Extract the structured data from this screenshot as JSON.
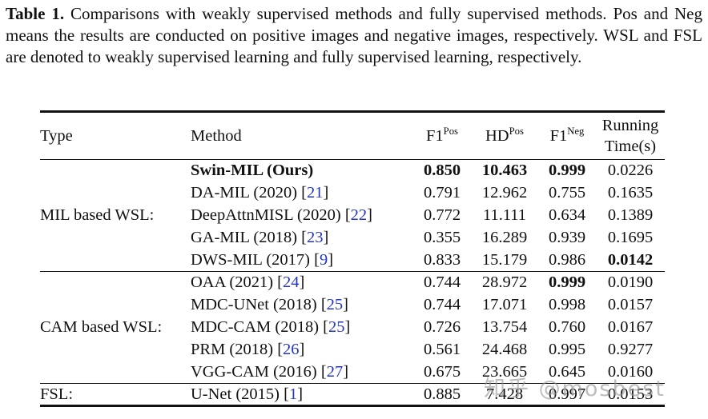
{
  "caption": {
    "label": "Table 1.",
    "text": " Comparisons with weakly supervised methods and fully supervised methods. Pos and Neg means the results are conducted on positive images and negative images, respectively. WSL and FSL are denoted to weakly supervised learning and fully supervised learning, respectively."
  },
  "table": {
    "header": {
      "type": "Type",
      "method": "Method",
      "f1pos": {
        "base": "F1",
        "sup": "Pos"
      },
      "hdpos": {
        "base": "HD",
        "sup": "Pos"
      },
      "f1neg": {
        "base": "F1",
        "sup": "Neg"
      },
      "runtime_line1": "Running",
      "runtime_line2": "Time(s)"
    },
    "groups": [
      {
        "type_label": "MIL based WSL:",
        "rows": [
          {
            "method": "Swin-MIL (Ours)",
            "cite": null,
            "bold_method": true,
            "f1pos": "0.850",
            "hdpos": "10.463",
            "f1neg": "0.999",
            "runtime": "0.0226",
            "bold": [
              "f1pos",
              "hdpos",
              "f1neg"
            ]
          },
          {
            "method": "DA-MIL (2020)",
            "cite": "21",
            "bold_method": false,
            "f1pos": "0.791",
            "hdpos": "12.962",
            "f1neg": "0.755",
            "runtime": "0.1635",
            "bold": []
          },
          {
            "method": "DeepAttnMISL (2020)",
            "cite": "22",
            "bold_method": false,
            "f1pos": "0.772",
            "hdpos": "11.111",
            "f1neg": "0.634",
            "runtime": "0.1389",
            "bold": []
          },
          {
            "method": "GA-MIL (2018)",
            "cite": "23",
            "bold_method": false,
            "f1pos": "0.355",
            "hdpos": "16.289",
            "f1neg": "0.939",
            "runtime": "0.1695",
            "bold": []
          },
          {
            "method": "DWS-MIL (2017)",
            "cite": "9",
            "bold_method": false,
            "f1pos": "0.833",
            "hdpos": "15.179",
            "f1neg": "0.986",
            "runtime": "0.0142",
            "bold": [
              "runtime"
            ]
          }
        ]
      },
      {
        "type_label": "CAM based WSL:",
        "rows": [
          {
            "method": "OAA (2021)",
            "cite": "24",
            "bold_method": false,
            "f1pos": "0.744",
            "hdpos": "28.972",
            "f1neg": "0.999",
            "runtime": "0.0190",
            "bold": [
              "f1neg"
            ]
          },
          {
            "method": "MDC-UNet (2018)",
            "cite": "25",
            "bold_method": false,
            "f1pos": "0.744",
            "hdpos": "17.071",
            "f1neg": "0.998",
            "runtime": "0.0157",
            "bold": []
          },
          {
            "method": "MDC-CAM (2018)",
            "cite": "25",
            "bold_method": false,
            "f1pos": "0.726",
            "hdpos": "13.754",
            "f1neg": "0.760",
            "runtime": "0.0167",
            "bold": []
          },
          {
            "method": "PRM (2018)",
            "cite": "26",
            "bold_method": false,
            "f1pos": "0.561",
            "hdpos": "24.468",
            "f1neg": "0.995",
            "runtime": "0.9277",
            "bold": []
          },
          {
            "method": "VGG-CAM (2016)",
            "cite": "27",
            "bold_method": false,
            "f1pos": "0.675",
            "hdpos": "23.665",
            "f1neg": "0.645",
            "runtime": "0.0160",
            "bold": []
          }
        ]
      },
      {
        "type_label": "FSL:",
        "rows": [
          {
            "method": "U-Net (2015)",
            "cite": "1",
            "bold_method": false,
            "f1pos": "0.885",
            "hdpos": "7.428",
            "f1neg": "0.997",
            "runtime": "0.0153",
            "bold": []
          }
        ]
      }
    ]
  },
  "watermark": {
    "text": "知乎 @mosbest"
  },
  "colors": {
    "citation_blue": "#2335c4",
    "text": "#111111",
    "rule": "#111111",
    "background": "#ffffff",
    "watermark_gray": "#949494"
  }
}
